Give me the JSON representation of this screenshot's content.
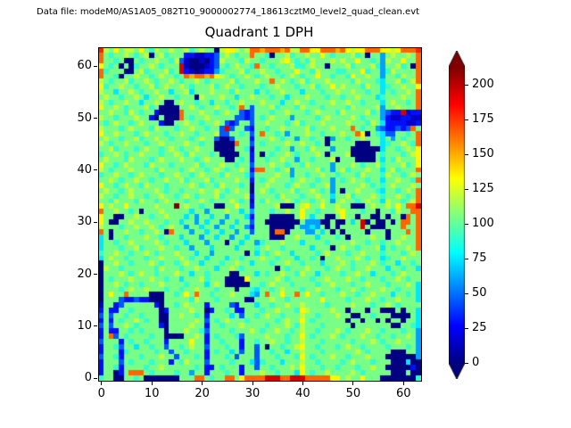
{
  "header": {
    "data_file_label": "Data file: modeM0/AS1A05_082T10_9000002774_18613cztM0_level2_quad_clean.evt",
    "title": "Quadrant 1 DPH"
  },
  "chart_data": {
    "type": "heatmap",
    "title": "Quadrant 1 DPH",
    "xlabel": "",
    "ylabel": "",
    "grid_size": [
      64,
      64
    ],
    "x_range": [
      0,
      63
    ],
    "y_range": [
      0,
      63
    ],
    "x_ticks": [
      0,
      10,
      20,
      30,
      40,
      50,
      60
    ],
    "y_ticks": [
      0,
      10,
      20,
      30,
      40,
      50,
      60
    ],
    "colormap": "jet",
    "colorbar_ticks": [
      0,
      25,
      50,
      75,
      100,
      125,
      150,
      175,
      200
    ],
    "colorbar_extend": "both",
    "vmin": 0,
    "vmax": 213,
    "cell_unit": 15,
    "value_encoding": "each hex char is counts/15 (0..f -> 0..225); rows listed top (y=63) to bottom (y=0)",
    "rows_top_to_bottom": [
      "c87978879768778778678770899878bbabbbab88bb99bbbab9899bbb9989bbbc",
      "b76778767807867772211223787677b7760778677877976777867077 4787787b",
      "b776700767787768310010238777687767778976768777878779776748 77977b",
      "97670706778767 77d10001237678776b77677786678770777867778647 78670b",
      "b677700786777867d2101224677786778776777977687776677796774687777b",
      "b77607787767877 67babbab98767787678776787677977677697787747 76877b",
      "876778677876778767787677778677 7877b787678677787777687776577 8678b",
      "9677877677867877876777867877677767787776778677978777687756778779",
      "8775778767787757785777877768777576778777577767787787767757 67787b",
      "78776778757787767770877787757787776775777877767767787775677 7877b",
      "8767787757787007877677577677877787775778776777877877677757 87767b",
      "977876777867000077876778 7767b73777867776877767777687777847 78777b",
      "7787768767720000b777877678773237776778777678777687777867 4322d122",
      "8776777877207000b7677877777332376787774777767877778767 7742112211",
      "7678776787772007787767787323773778777678677787777877768752222112",
      "87776787776877767787767 73d37732776778777786777 8777b76774322323b",
      "977877767877767787767778337767 37b7767477787767778 77b90765337767b",
      "78776778677877677767877300377727778767747767704776778777574767 7b",
      "876778777677877778776770000b77376777787787767077777000775677876b",
      "7786777678776787677877700007761777767747768777477700000057767879",
      "6778767787776778768777670000772707677876777870777800000767776789",
      "7877768777678777877678777007672776778774776777807770000757687779",
      "9776787776877767777867778776773777877677687777477787677867778679",
      "876777877776877767877678 7677872bb77678477778674786777877578 6777b",
      "6778776787776778776787776877763777787747767787767776877768776787",
      "77876778776778778677786777787727678777678776774767877677577877 6b",
      "9776787768777677778767768777670778777678776778477777876767877787",
      "787767877778767767778778767877078767778677876747077877765776787b",
      "877677877677877678767778677778277776877767787757786777876778767b",
      "77687776877678777677876777876717687778767767874787767877587767 8b",
      "978779777778777f78776770077977277778000789779778770007877879 7bbd",
      "b778776707778777775774777877574777677877977677789777677077687 7bb",
      "97700778776778777574775774777527770000079757700797707700707 70b7b",
      "970077877877767757747577477577377000000074440070 0757d0700707bb7b",
      "877767787787678774775774775774277700000744547070 7777d7000777b77b",
      "b7077877677870b777477577577477377 70bb07774475707077770777077 7b7b",
      "57077677787767775777477577477577770007787775777670777787707787 7b",
      "5776778777787677757774777077577467778777577776777787767767787 77b",
      "577767786777877677477757777577767877677777577707877677785767787b",
      "6778776778767778777577477777707576787757777678777677877767776787",
      "5787767776778777876775777577677787767775776707787778767756778777",
      "0778776777876776787757776778775777677877677757778767778767757767",
      "0877677777768777677877757787677777707677787776787767787775776775",
      "0777876787767778775776777700777576778776877577776778775777678777",
      "0767778777877677577786777000097777787677776778777877677767787677",
      "0778767767778777767775787000007767877767777677877767787776777875",
      "0777678778777677677877767770776577678777677877767787677787767775",
      "07977b77770007767 97b77677787775 47b77977b797767778776778777577675",
      "0777322322000777776877767777700777877677777797777677787767787775",
      "1772377777720776787772777732777577677877877776777787776778767777",
      "2722776777770277778770277672277767787776987777877077707700070775",
      "3737767767770077877672777757377678776777877677787700776777000075",
      "2727677876770077777873767877767777767877976777777077077070770775",
      "3737787677772077778772776777877776777876877767777707777777007765",
      "2722776767777077787763777767778767787767877677787677787767776774",
      "27b3767777677000077872767776377778777677976777876777877677677874",
      "3777276776777277779772776777277677877677877767777767778767787774",
      "2776377577677377678773777677277370776778977677767877677776777674",
      "2777267777767737767772767757377377677577877767777778767777000774",
      "3776277767778773777672777673777377767776976777877677787770000004",
      "2777376777677727687773777767775367775777877677776787776777000500",
      "2776277776778777777672276777277377677787977767767776778770000020",
      "277027bbb76777767747727776772777877677759767787777876777 77000700",
      "6770077670000000777bb7677bb79bbbbdddbbdddbbbbb997877977700000006"
    ]
  }
}
